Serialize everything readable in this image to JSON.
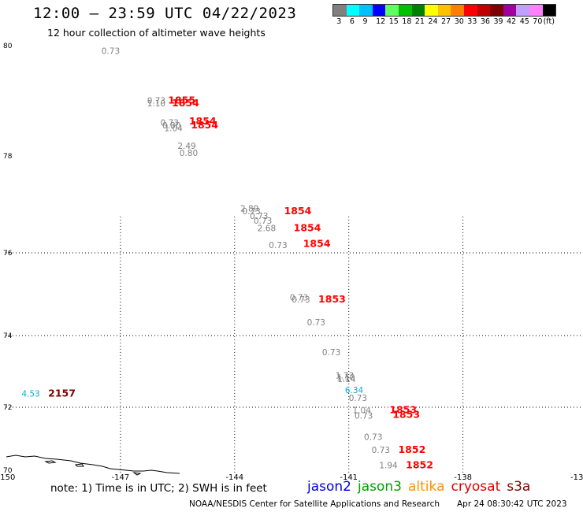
{
  "header": {
    "title": "12:00 – 23:59 UTC 04/22/2023",
    "subtitle": "12 hour collection of altimeter wave heights"
  },
  "scale": {
    "colors": [
      "#808080",
      "#00ffff",
      "#00c0ff",
      "#0000ff",
      "#60ff60",
      "#00c000",
      "#008000",
      "#ffff00",
      "#ffc000",
      "#ff8000",
      "#ff0000",
      "#c00000",
      "#800000",
      "#a000a0",
      "#c0a0ff",
      "#ff80ff",
      "#000000"
    ],
    "labels": [
      "3",
      "6",
      "9",
      "12",
      "15",
      "18",
      "21",
      "24",
      "27",
      "30",
      "33",
      "36",
      "39",
      "42",
      "45",
      "70",
      "(ft)"
    ]
  },
  "map": {
    "lat_labels": [
      "80",
      "78",
      "76",
      "74",
      "72",
      "70"
    ],
    "lon_labels": [
      "-150",
      "-147",
      "-144",
      "-141",
      "-138",
      "-13"
    ],
    "swh_labels": [
      {
        "text": "0.73",
        "lon": -147.5,
        "lat": 79.85,
        "color": "#808080"
      },
      {
        "text": "0.73",
        "lon": -146.3,
        "lat": 78.95,
        "color": "#808080"
      },
      {
        "text": "1.10",
        "lon": -146.3,
        "lat": 78.9,
        "color": "#808080"
      },
      {
        "text": "0.73",
        "lon": -145.95,
        "lat": 78.55,
        "color": "#808080"
      },
      {
        "text": "0.80",
        "lon": -145.9,
        "lat": 78.5,
        "color": "#808080"
      },
      {
        "text": "1.04",
        "lon": -145.85,
        "lat": 78.45,
        "color": "#808080"
      },
      {
        "text": "2.49",
        "lon": -145.5,
        "lat": 78.13,
        "color": "#808080"
      },
      {
        "text": "0.80",
        "lon": -145.45,
        "lat": 78.0,
        "color": "#808080"
      },
      {
        "text": "2.89",
        "lon": -143.85,
        "lat": 76.85,
        "color": "#808080"
      },
      {
        "text": "0.73",
        "lon": -143.8,
        "lat": 76.8,
        "color": "#808080"
      },
      {
        "text": "0.73",
        "lon": -143.6,
        "lat": 76.7,
        "color": "#808080"
      },
      {
        "text": "0.73",
        "lon": -143.5,
        "lat": 76.6,
        "color": "#808080"
      },
      {
        "text": "2.68",
        "lon": -143.4,
        "lat": 76.45,
        "color": "#808080"
      },
      {
        "text": "0.73",
        "lon": -143.1,
        "lat": 76.1,
        "color": "#808080"
      },
      {
        "text": "0.73",
        "lon": -142.55,
        "lat": 74.85,
        "color": "#808080"
      },
      {
        "text": "0.73",
        "lon": -142.5,
        "lat": 74.8,
        "color": "#808080"
      },
      {
        "text": "0.73",
        "lon": -142.1,
        "lat": 74.25,
        "color": "#808080"
      },
      {
        "text": "0.73",
        "lon": -141.7,
        "lat": 73.45,
        "color": "#808080"
      },
      {
        "text": "1.73",
        "lon": -141.35,
        "lat": 72.8,
        "color": "#808080"
      },
      {
        "text": "1.10",
        "lon": -141.32,
        "lat": 72.75,
        "color": "#808080"
      },
      {
        "text": "1.14",
        "lon": -141.3,
        "lat": 72.7,
        "color": "#808080"
      },
      {
        "text": "6.34",
        "lon": -141.1,
        "lat": 72.4,
        "color": "#00b0d0"
      },
      {
        "text": "0.73",
        "lon": -141.0,
        "lat": 72.18,
        "color": "#808080"
      },
      {
        "text": "1.04",
        "lon": -140.9,
        "lat": 71.82,
        "color": "#808080"
      },
      {
        "text": "0.73",
        "lon": -140.85,
        "lat": 71.65,
        "color": "#808080"
      },
      {
        "text": "0.73",
        "lon": -140.6,
        "lat": 71.0,
        "color": "#808080"
      },
      {
        "text": "0.73",
        "lon": -140.4,
        "lat": 70.6,
        "color": "#808080"
      },
      {
        "text": "1.94",
        "lon": -140.2,
        "lat": 70.13,
        "color": "#808080"
      },
      {
        "text": "4.53",
        "lon": -149.6,
        "lat": 72.3,
        "color": "#00b0d0"
      }
    ],
    "pass_labels": [
      {
        "text": "1855",
        "lon": -145.75,
        "lat": 78.95,
        "color": "#ff0000"
      },
      {
        "text": "1854",
        "lon": -145.65,
        "lat": 78.9,
        "color": "#ff0000"
      },
      {
        "text": "1854",
        "lon": -145.2,
        "lat": 78.57,
        "color": "#ff0000"
      },
      {
        "text": "1854",
        "lon": -145.15,
        "lat": 78.5,
        "color": "#ff0000"
      },
      {
        "text": "1854",
        "lon": -142.7,
        "lat": 76.8,
        "color": "#ff0000"
      },
      {
        "text": "1854",
        "lon": -142.45,
        "lat": 76.45,
        "color": "#ff0000"
      },
      {
        "text": "1854",
        "lon": -142.2,
        "lat": 76.12,
        "color": "#ff0000"
      },
      {
        "text": "1853",
        "lon": -141.8,
        "lat": 74.8,
        "color": "#ff0000"
      },
      {
        "text": "1853",
        "lon": -139.93,
        "lat": 71.82,
        "color": "#ff0000"
      },
      {
        "text": "1853",
        "lon": -139.85,
        "lat": 71.67,
        "color": "#ff0000"
      },
      {
        "text": "1852",
        "lon": -139.7,
        "lat": 70.6,
        "color": "#ff0000"
      },
      {
        "text": "1852",
        "lon": -139.5,
        "lat": 70.13,
        "color": "#ff0000"
      },
      {
        "text": "2157",
        "lon": -148.9,
        "lat": 72.3,
        "color": "#800000"
      }
    ]
  },
  "legend": {
    "note": "note: 1) Time is in UTC; 2) SWH is in feet",
    "satellites": [
      {
        "name": "jason2",
        "color": "#0000e0"
      },
      {
        "name": "jason3",
        "color": "#00a000"
      },
      {
        "name": "altika",
        "color": "#ff9000"
      },
      {
        "name": "cryosat",
        "color": "#e00000"
      },
      {
        "name": "s3a",
        "color": "#800000"
      }
    ]
  },
  "footer": {
    "credit": "NOAA/NESDIS Center for Satellite Applications and Research",
    "timestamp": "Apr 24 08:30:42 UTC 2023"
  }
}
